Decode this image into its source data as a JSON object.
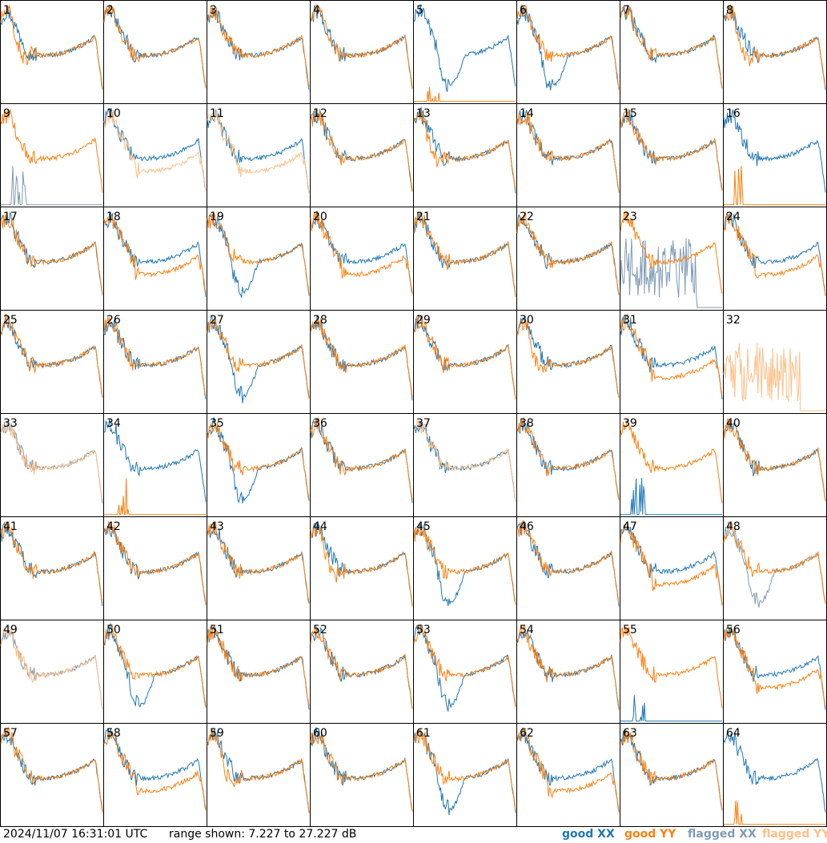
{
  "footer": {
    "timestamp": "2024/11/07 16:31:01 UTC",
    "range": "range shown: 7.227 to 27.227 dB"
  },
  "legend": {
    "good_xx": {
      "label": "good XX",
      "color": "#1f77b4"
    },
    "good_yy": {
      "label": "good YY",
      "color": "#ff7f0e"
    },
    "flagged_xx": {
      "label": "flagged XX",
      "color": "#7f9bb4"
    },
    "flagged_yy": {
      "label": "flagged YY",
      "color": "#ffbf87"
    }
  },
  "chart_data": {
    "type": "line",
    "grid": "8x8 small multiples",
    "ylim": [
      7.227,
      27.227
    ],
    "yunit": "dB",
    "panels": [
      {
        "id": "1",
        "xx": "good",
        "yy": "good",
        "shape": "drop"
      },
      {
        "id": "2",
        "xx": "good",
        "yy": "good",
        "shape": "bowl"
      },
      {
        "id": "3",
        "xx": "good",
        "yy": "good",
        "shape": "bowl"
      },
      {
        "id": "4",
        "xx": "good",
        "yy": "good",
        "shape": "bowl"
      },
      {
        "id": "5",
        "xx": "good",
        "yy": "good",
        "shape": "dip",
        "yy_shape": "spike"
      },
      {
        "id": "6",
        "xx": "good",
        "yy": "good",
        "shape": "dip"
      },
      {
        "id": "7",
        "xx": "good",
        "yy": "good",
        "shape": "bowl"
      },
      {
        "id": "8",
        "xx": "good",
        "yy": "good",
        "shape": "drop"
      },
      {
        "id": "9",
        "xx": "flagged",
        "yy": "good",
        "shape": "bowl",
        "xx_shape": "spike"
      },
      {
        "id": "10",
        "xx": "good",
        "yy": "flagged",
        "shape": "split"
      },
      {
        "id": "11",
        "xx": "good",
        "yy": "flagged",
        "shape": "split"
      },
      {
        "id": "12",
        "xx": "good",
        "yy": "good",
        "shape": "bowl"
      },
      {
        "id": "13",
        "xx": "good",
        "yy": "good",
        "shape": "drop"
      },
      {
        "id": "14",
        "xx": "good",
        "yy": "good",
        "shape": "bowl"
      },
      {
        "id": "15",
        "xx": "good",
        "yy": "good",
        "shape": "bowl"
      },
      {
        "id": "16",
        "xx": "good",
        "yy": "good",
        "shape": "bowl",
        "yy_shape": "spike"
      },
      {
        "id": "17",
        "xx": "good",
        "yy": "good",
        "shape": "bowl"
      },
      {
        "id": "18",
        "xx": "good",
        "yy": "good",
        "shape": "split"
      },
      {
        "id": "19",
        "xx": "good",
        "yy": "good",
        "shape": "dip"
      },
      {
        "id": "20",
        "xx": "good",
        "yy": "good",
        "shape": "split"
      },
      {
        "id": "21",
        "xx": "good",
        "yy": "good",
        "shape": "bowl"
      },
      {
        "id": "22",
        "xx": "good",
        "yy": "good",
        "shape": "bowl"
      },
      {
        "id": "23",
        "xx": "flagged",
        "yy": "good",
        "shape": "flat",
        "xx_shape": "noise"
      },
      {
        "id": "24",
        "xx": "good",
        "yy": "good",
        "shape": "split"
      },
      {
        "id": "25",
        "xx": "good",
        "yy": "good",
        "shape": "bowl"
      },
      {
        "id": "26",
        "xx": "good",
        "yy": "good",
        "shape": "bowl"
      },
      {
        "id": "27",
        "xx": "good",
        "yy": "good",
        "shape": "dip"
      },
      {
        "id": "28",
        "xx": "good",
        "yy": "good",
        "shape": "bowl"
      },
      {
        "id": "29",
        "xx": "good",
        "yy": "good",
        "shape": "bowl"
      },
      {
        "id": "30",
        "xx": "good",
        "yy": "good",
        "shape": "drop"
      },
      {
        "id": "31",
        "xx": "good",
        "yy": "good",
        "shape": "split"
      },
      {
        "id": "32",
        "xx": "none",
        "yy": "flagged",
        "shape": "noise"
      },
      {
        "id": "33",
        "xx": "flagged",
        "yy": "flagged",
        "shape": "bowl"
      },
      {
        "id": "34",
        "xx": "good",
        "yy": "good",
        "shape": "bowl",
        "yy_shape": "spike"
      },
      {
        "id": "35",
        "xx": "good",
        "yy": "good",
        "shape": "dip"
      },
      {
        "id": "36",
        "xx": "good",
        "yy": "good",
        "shape": "bowl"
      },
      {
        "id": "37",
        "xx": "good",
        "yy": "flagged",
        "shape": "bowl"
      },
      {
        "id": "38",
        "xx": "good",
        "yy": "good",
        "shape": "bowl"
      },
      {
        "id": "39",
        "xx": "good",
        "yy": "good",
        "shape": "bowl",
        "xx_shape": "spike"
      },
      {
        "id": "40",
        "xx": "good",
        "yy": "good",
        "shape": "bowl"
      },
      {
        "id": "41",
        "xx": "good",
        "yy": "good",
        "shape": "bowl"
      },
      {
        "id": "42",
        "xx": "good",
        "yy": "good",
        "shape": "bowl"
      },
      {
        "id": "43",
        "xx": "good",
        "yy": "good",
        "shape": "bowl"
      },
      {
        "id": "44",
        "xx": "good",
        "yy": "good",
        "shape": "drop"
      },
      {
        "id": "45",
        "xx": "good",
        "yy": "good",
        "shape": "dip"
      },
      {
        "id": "46",
        "xx": "good",
        "yy": "good",
        "shape": "bowl"
      },
      {
        "id": "47",
        "xx": "good",
        "yy": "good",
        "shape": "split"
      },
      {
        "id": "48",
        "xx": "flagged",
        "yy": "good",
        "shape": "dip"
      },
      {
        "id": "49",
        "xx": "flagged",
        "yy": "flagged",
        "shape": "bowl"
      },
      {
        "id": "50",
        "xx": "good",
        "yy": "good",
        "shape": "dip"
      },
      {
        "id": "51",
        "xx": "good",
        "yy": "good",
        "shape": "bowl"
      },
      {
        "id": "52",
        "xx": "good",
        "yy": "good",
        "shape": "bowl"
      },
      {
        "id": "53",
        "xx": "good",
        "yy": "good",
        "shape": "dip"
      },
      {
        "id": "54",
        "xx": "good",
        "yy": "good",
        "shape": "bowl"
      },
      {
        "id": "55",
        "xx": "good",
        "yy": "good",
        "shape": "bowl",
        "xx_shape": "spike"
      },
      {
        "id": "56",
        "xx": "good",
        "yy": "good",
        "shape": "split"
      },
      {
        "id": "57",
        "xx": "good",
        "yy": "good",
        "shape": "bowl"
      },
      {
        "id": "58",
        "xx": "good",
        "yy": "good",
        "shape": "split"
      },
      {
        "id": "59",
        "xx": "good",
        "yy": "good",
        "shape": "drop"
      },
      {
        "id": "60",
        "xx": "good",
        "yy": "good",
        "shape": "bowl"
      },
      {
        "id": "61",
        "xx": "good",
        "yy": "good",
        "shape": "dip"
      },
      {
        "id": "62",
        "xx": "good",
        "yy": "good",
        "shape": "split"
      },
      {
        "id": "63",
        "xx": "good",
        "yy": "good",
        "shape": "bowl"
      },
      {
        "id": "64",
        "xx": "good",
        "yy": "good",
        "shape": "bowl",
        "yy_shape": "spike"
      }
    ]
  }
}
